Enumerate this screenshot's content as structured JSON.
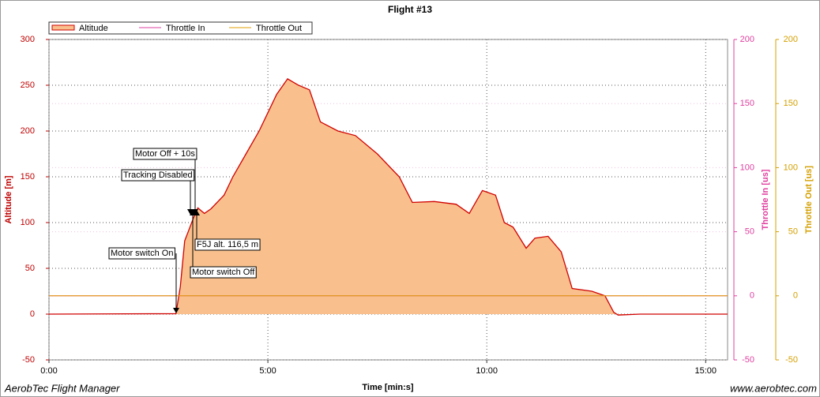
{
  "chart_data": {
    "type": "area",
    "title": "Flight #13",
    "xlabel": "Time [min:s]",
    "ylabel": "Altitude [m]",
    "y2label": "Throttle In [us]",
    "y3label": "Throttle Out [us]",
    "footer_left": "AerobTec Flight Manager",
    "footer_right": "www.aerobtec.com",
    "x": [
      0,
      2.9,
      3.0,
      3.1,
      3.3,
      3.4,
      3.55,
      3.7,
      4.0,
      4.2,
      4.5,
      4.8,
      5.0,
      5.2,
      5.45,
      5.7,
      5.95,
      6.2,
      6.6,
      7.0,
      7.5,
      8.0,
      8.3,
      8.8,
      9.3,
      9.6,
      9.9,
      10.2,
      10.4,
      10.6,
      10.9,
      11.1,
      11.4,
      11.7,
      11.95,
      12.4,
      12.7,
      12.9,
      13.0,
      13.5,
      15.5
    ],
    "series": [
      {
        "name": "Altitude",
        "color": "#d00000",
        "fill": "#f9c08d",
        "values": [
          0,
          0.5,
          30,
          80,
          105,
          116,
          110,
          115,
          130,
          150,
          175,
          200,
          220,
          240,
          257,
          250,
          245,
          210,
          200,
          195,
          175,
          150,
          122,
          123,
          120,
          110,
          135,
          130,
          100,
          95,
          72,
          83,
          85,
          68,
          28,
          25,
          20,
          2,
          -1,
          0,
          0
        ]
      },
      {
        "name": "Throttle In",
        "color": "#e040a0",
        "axis": "y2",
        "values": [
          0,
          0,
          0,
          0,
          0,
          0,
          0,
          0,
          0,
          0,
          0,
          0,
          0,
          0,
          0,
          0,
          0,
          0,
          0,
          0,
          0,
          0,
          0,
          0,
          0,
          0,
          0,
          0,
          0,
          0,
          0,
          0,
          0,
          0,
          0,
          0,
          0,
          0,
          0,
          0,
          0
        ]
      },
      {
        "name": "Throttle Out",
        "color": "#e0a000",
        "axis": "y3",
        "values": [
          0,
          0,
          0,
          0,
          0,
          0,
          0,
          0,
          0,
          0,
          0,
          0,
          0,
          0,
          0,
          0,
          0,
          0,
          0,
          0,
          0,
          0,
          0,
          0,
          0,
          0,
          0,
          0,
          0,
          0,
          0,
          0,
          0,
          0,
          0,
          0,
          0,
          0,
          0,
          0,
          0
        ]
      }
    ],
    "xlim": [
      0,
      15.5
    ],
    "xticks": [
      {
        "value": 0,
        "label": "0:00"
      },
      {
        "value": 5,
        "label": "5:00"
      },
      {
        "value": 10,
        "label": "10:00"
      },
      {
        "value": 15,
        "label": "15:00"
      }
    ],
    "ylim": [
      -50,
      300
    ],
    "yticks": [
      -50,
      0,
      50,
      100,
      150,
      200,
      250,
      300
    ],
    "y2lim": [
      -50,
      200
    ],
    "y2ticks": [
      -50,
      0,
      50,
      100,
      150,
      200
    ],
    "y3lim": [
      -50,
      200
    ],
    "y3ticks": [
      -50,
      0,
      50,
      100,
      150,
      200
    ],
    "grid": true,
    "annotations": [
      "Motor switch On",
      "Tracking Disabled",
      "Motor Off + 10s",
      "F5J alt. 116,5 m",
      "Motor switch Off"
    ]
  }
}
